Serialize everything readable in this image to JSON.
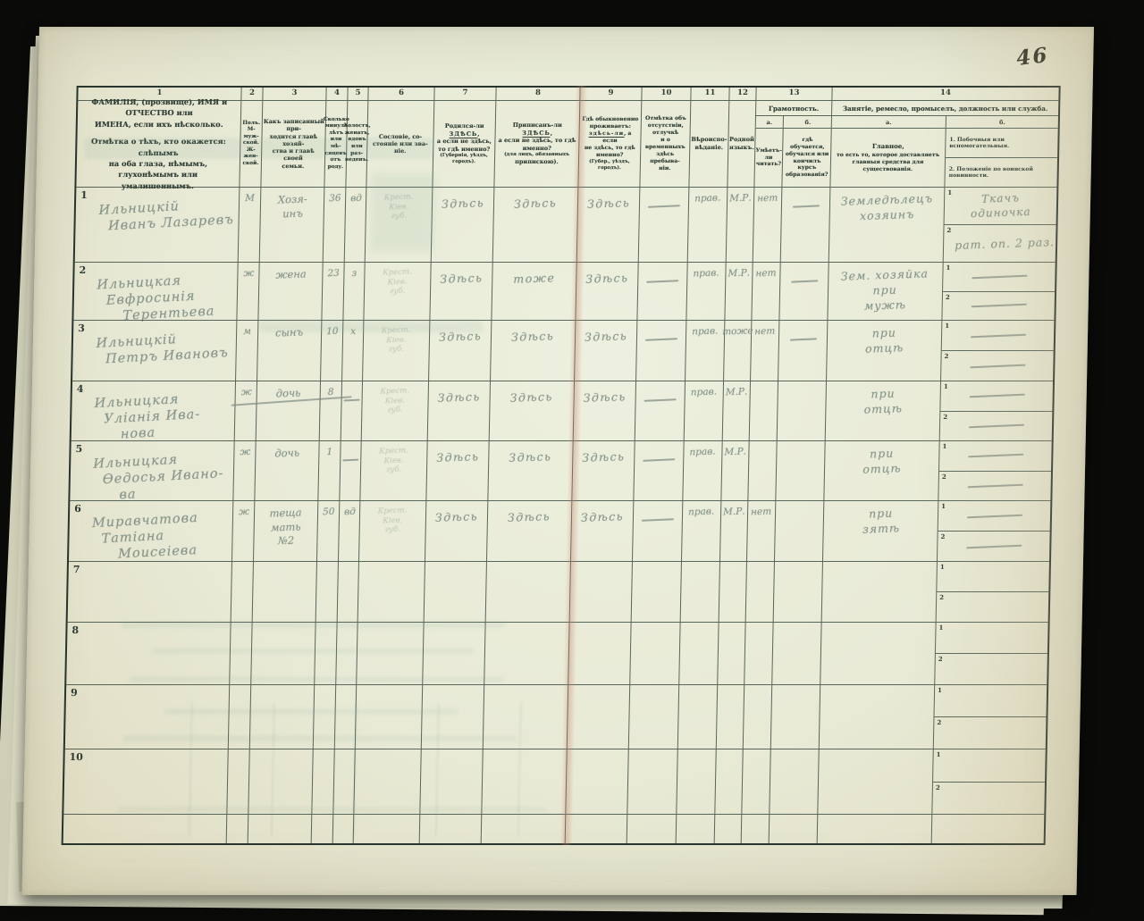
{
  "page": {
    "number": "46",
    "colors": {
      "background": "#0a0a09",
      "paper": "#e8ead7",
      "table_line": "#38483e",
      "printed_text": "#2e3c34",
      "pencil": "#86948a",
      "ink": "#2f3128",
      "fold_shadow": "#c17c65"
    }
  },
  "header": {
    "col_numbers": [
      "1",
      "2",
      "3",
      "4",
      "5",
      "6",
      "7",
      "8",
      "9",
      "10",
      "11",
      "12",
      "13",
      "14"
    ],
    "underline_tokens": [
      "ЗДѢСЬ",
      "здѣсь-ли"
    ],
    "cols": {
      "c1": [
        "ФАМИЛІЯ, (прозвище), ИМЯ и ОТЧЕСТВО или",
        "ИМЕНА, если ихъ нѣсколько.",
        "Отмѣтка о тѣхъ, кто окажется: слѣпымъ",
        "на оба глаза, нѣмымъ, глухонѣмымъ или",
        "умалишеннымъ."
      ],
      "c2": [
        "Полъ.",
        "М-муж-",
        "ской.",
        "Ж-жен-",
        "ской."
      ],
      "c3": [
        "Какъ записанный при-",
        "ходится главѣ хозяй-",
        "ства и главѣ своей",
        "семьи."
      ],
      "c4": [
        "Сколько",
        "минуло",
        "лѣтъ",
        "или мѣ-",
        "сяцевъ",
        "отъ роду."
      ],
      "c5": [
        "Холостъ,",
        "женатъ,",
        "вдовъ",
        "или раз-",
        "веденъ."
      ],
      "c6": [
        "Сословіе, со-",
        "стояніе или зва-",
        "ніе."
      ],
      "c7": [
        "Родился-ли ЗДѢСЬ,",
        "а если не здѣсь,",
        "то гдѣ именно?",
        "(Губернія, уѣздъ, городъ)."
      ],
      "c8": [
        "Приписанъ-ли ЗДѢСЬ,",
        "а если не здѣсь, то гдѣ",
        "именно?",
        "(для лицъ, обязанныхъ",
        "припискою)."
      ],
      "c9": [
        "Гдѣ обыкновенно",
        "проживаетъ:",
        "здѣсь-ли, а если",
        "не здѣсь, то гдѣ",
        "именно?",
        "(Губер., уѣздъ, городъ)."
      ],
      "c10": [
        "Отмѣтка объ",
        "отсутствіи, отлучкѣ",
        "и о временныхъ",
        "здѣсь пребыва-",
        "ніи."
      ],
      "c11": [
        "Вѣроиспо-",
        "вѣданіе."
      ],
      "c12": [
        "Родной",
        "языкъ."
      ]
    },
    "g13": {
      "title": "Грамотность.",
      "a_label": "а.",
      "b_label": "б.",
      "a_lines": [
        "Умѣетъ-",
        "ли",
        "читать?"
      ],
      "b_lines": [
        "гдѣ обучается,",
        "обучался или",
        "кончилъ курсъ",
        "образованія?"
      ]
    },
    "g14": {
      "title": "Занятіе, ремесло, промыселъ, должность или служба.",
      "a_label": "а.",
      "b_label": "б.",
      "a_lines": [
        "Главное,",
        "то есть то, которое доставляетъ",
        "главныя средства для существованія."
      ],
      "b_line1": "1.  Побочныя или вспомогательныя.",
      "b_line2": "2.  Положеніе по воинской повинности."
    },
    "side_indices": [
      "1",
      "2"
    ]
  },
  "rows": [
    {
      "num": "1",
      "name": [
        "Ильницкій",
        "Иванъ Лазаревъ"
      ],
      "sex": "М",
      "relation": [
        "Хозя-",
        "инъ"
      ],
      "age": "36",
      "marital": "вд",
      "estate": [
        "Крест.",
        "Кіев.",
        "губ."
      ],
      "born": "Здѣсь",
      "registered": "Здѣсь",
      "resides": "Здѣсь",
      "absence": "—",
      "religion": "прав.",
      "language": "М.Р.",
      "literate": "нет",
      "school": "—",
      "occupation": [
        "Земледѣлецъ",
        "хозяинъ"
      ],
      "side1": [
        "Ткачъ",
        "одиночка"
      ],
      "side2": "рат. оп. 2 раз."
    },
    {
      "num": "2",
      "name": [
        "Ильницкая",
        "Евфросинія",
        "Терентьева"
      ],
      "sex": "ж",
      "relation": [
        "жена"
      ],
      "age": "23",
      "marital": "з",
      "estate": [
        "Крест.",
        "Кіев.",
        "губ."
      ],
      "born": "Здѣсь",
      "registered": "тоже",
      "resides": "Здѣсь",
      "absence": "—",
      "religion": "прав.",
      "language": "М.Р.",
      "literate": "нет",
      "school": "—",
      "occupation": [
        "Зем. хозяйка",
        "при",
        "мужѣ"
      ],
      "side1": "—",
      "side2": "—"
    },
    {
      "num": "3",
      "name": [
        "Ильницкій",
        "Петръ Ивановъ"
      ],
      "sex": "м",
      "relation": [
        "сынъ"
      ],
      "age": "10",
      "marital": "х",
      "estate": [
        "Крест.",
        "Кіев.",
        "губ."
      ],
      "born": "Здѣсь",
      "registered": "Здѣсь",
      "resides": "Здѣсь",
      "absence": "—",
      "religion": "прав.",
      "language": "тоже",
      "literate": "нет",
      "school": "—",
      "occupation": [
        "при",
        "отцѣ"
      ],
      "side1": "—",
      "side2": "—"
    },
    {
      "num": "4",
      "name": [
        "Ильницкая",
        "Уліанія Ива-",
        "нова"
      ],
      "sex": "ж",
      "relation": [
        "дочь"
      ],
      "age": "8",
      "marital": "—",
      "estate": [
        "Крест.",
        "Кіев.",
        "губ."
      ],
      "born": "Здѣсь",
      "registered": "Здѣсь",
      "resides": "Здѣсь",
      "absence": "—",
      "religion": "прав.",
      "language": "М.Р.",
      "literate": "",
      "school": "",
      "occupation": [
        "при",
        "отцѣ"
      ],
      "side1": "—",
      "side2": "—"
    },
    {
      "num": "5",
      "name": [
        "Ильницкая",
        "Ѳедосья Ивано-",
        "ва"
      ],
      "sex": "ж",
      "relation": [
        "дочь"
      ],
      "age": "1",
      "marital": "—",
      "estate": [
        "Крест.",
        "Кіев.",
        "губ."
      ],
      "born": "Здѣсь",
      "registered": "Здѣсь",
      "resides": "Здѣсь",
      "absence": "—",
      "religion": "прав.",
      "language": "М.Р.",
      "literate": "",
      "school": "",
      "occupation": [
        "при",
        "отцѣ"
      ],
      "side1": "—",
      "side2": "—"
    },
    {
      "num": "6",
      "name": [
        "Миравчатова",
        "Татіана",
        "Моисеіева"
      ],
      "sex": "ж",
      "relation": [
        "теща",
        "мать",
        "№2"
      ],
      "age": "50",
      "marital": "вд",
      "estate": [
        "Крест.",
        "Кіев.",
        "губ."
      ],
      "born": "Здѣсь",
      "registered": "Здѣсь",
      "resides": "Здѣсь",
      "absence": "—",
      "religion": "прав.",
      "language": "М.Р.",
      "literate": "нет",
      "school": "",
      "occupation": [
        "при",
        "зятѣ"
      ],
      "side1": "—",
      "side2": "—"
    },
    {
      "num": "7",
      "name": [],
      "sex": "",
      "relation": [],
      "age": "",
      "marital": "",
      "estate": [],
      "born": "",
      "registered": "",
      "resides": "",
      "absence": "",
      "religion": "",
      "language": "",
      "literate": "",
      "school": "",
      "occupation": [],
      "side1": "",
      "side2": ""
    },
    {
      "num": "8",
      "name": [],
      "sex": "",
      "relation": [],
      "age": "",
      "marital": "",
      "estate": [],
      "born": "",
      "registered": "",
      "resides": "",
      "absence": "",
      "religion": "",
      "language": "",
      "literate": "",
      "school": "",
      "occupation": [],
      "side1": "",
      "side2": ""
    },
    {
      "num": "9",
      "name": [],
      "sex": "",
      "relation": [],
      "age": "",
      "marital": "",
      "estate": [],
      "born": "",
      "registered": "",
      "resides": "",
      "absence": "",
      "religion": "",
      "language": "",
      "literate": "",
      "school": "",
      "occupation": [],
      "side1": "",
      "side2": ""
    },
    {
      "num": "10",
      "name": [],
      "sex": "",
      "relation": [],
      "age": "",
      "marital": "",
      "estate": [],
      "born": "",
      "registered": "",
      "resides": "",
      "absence": "",
      "religion": "",
      "language": "",
      "literate": "",
      "school": "",
      "occupation": [],
      "side1": "",
      "side2": ""
    }
  ]
}
